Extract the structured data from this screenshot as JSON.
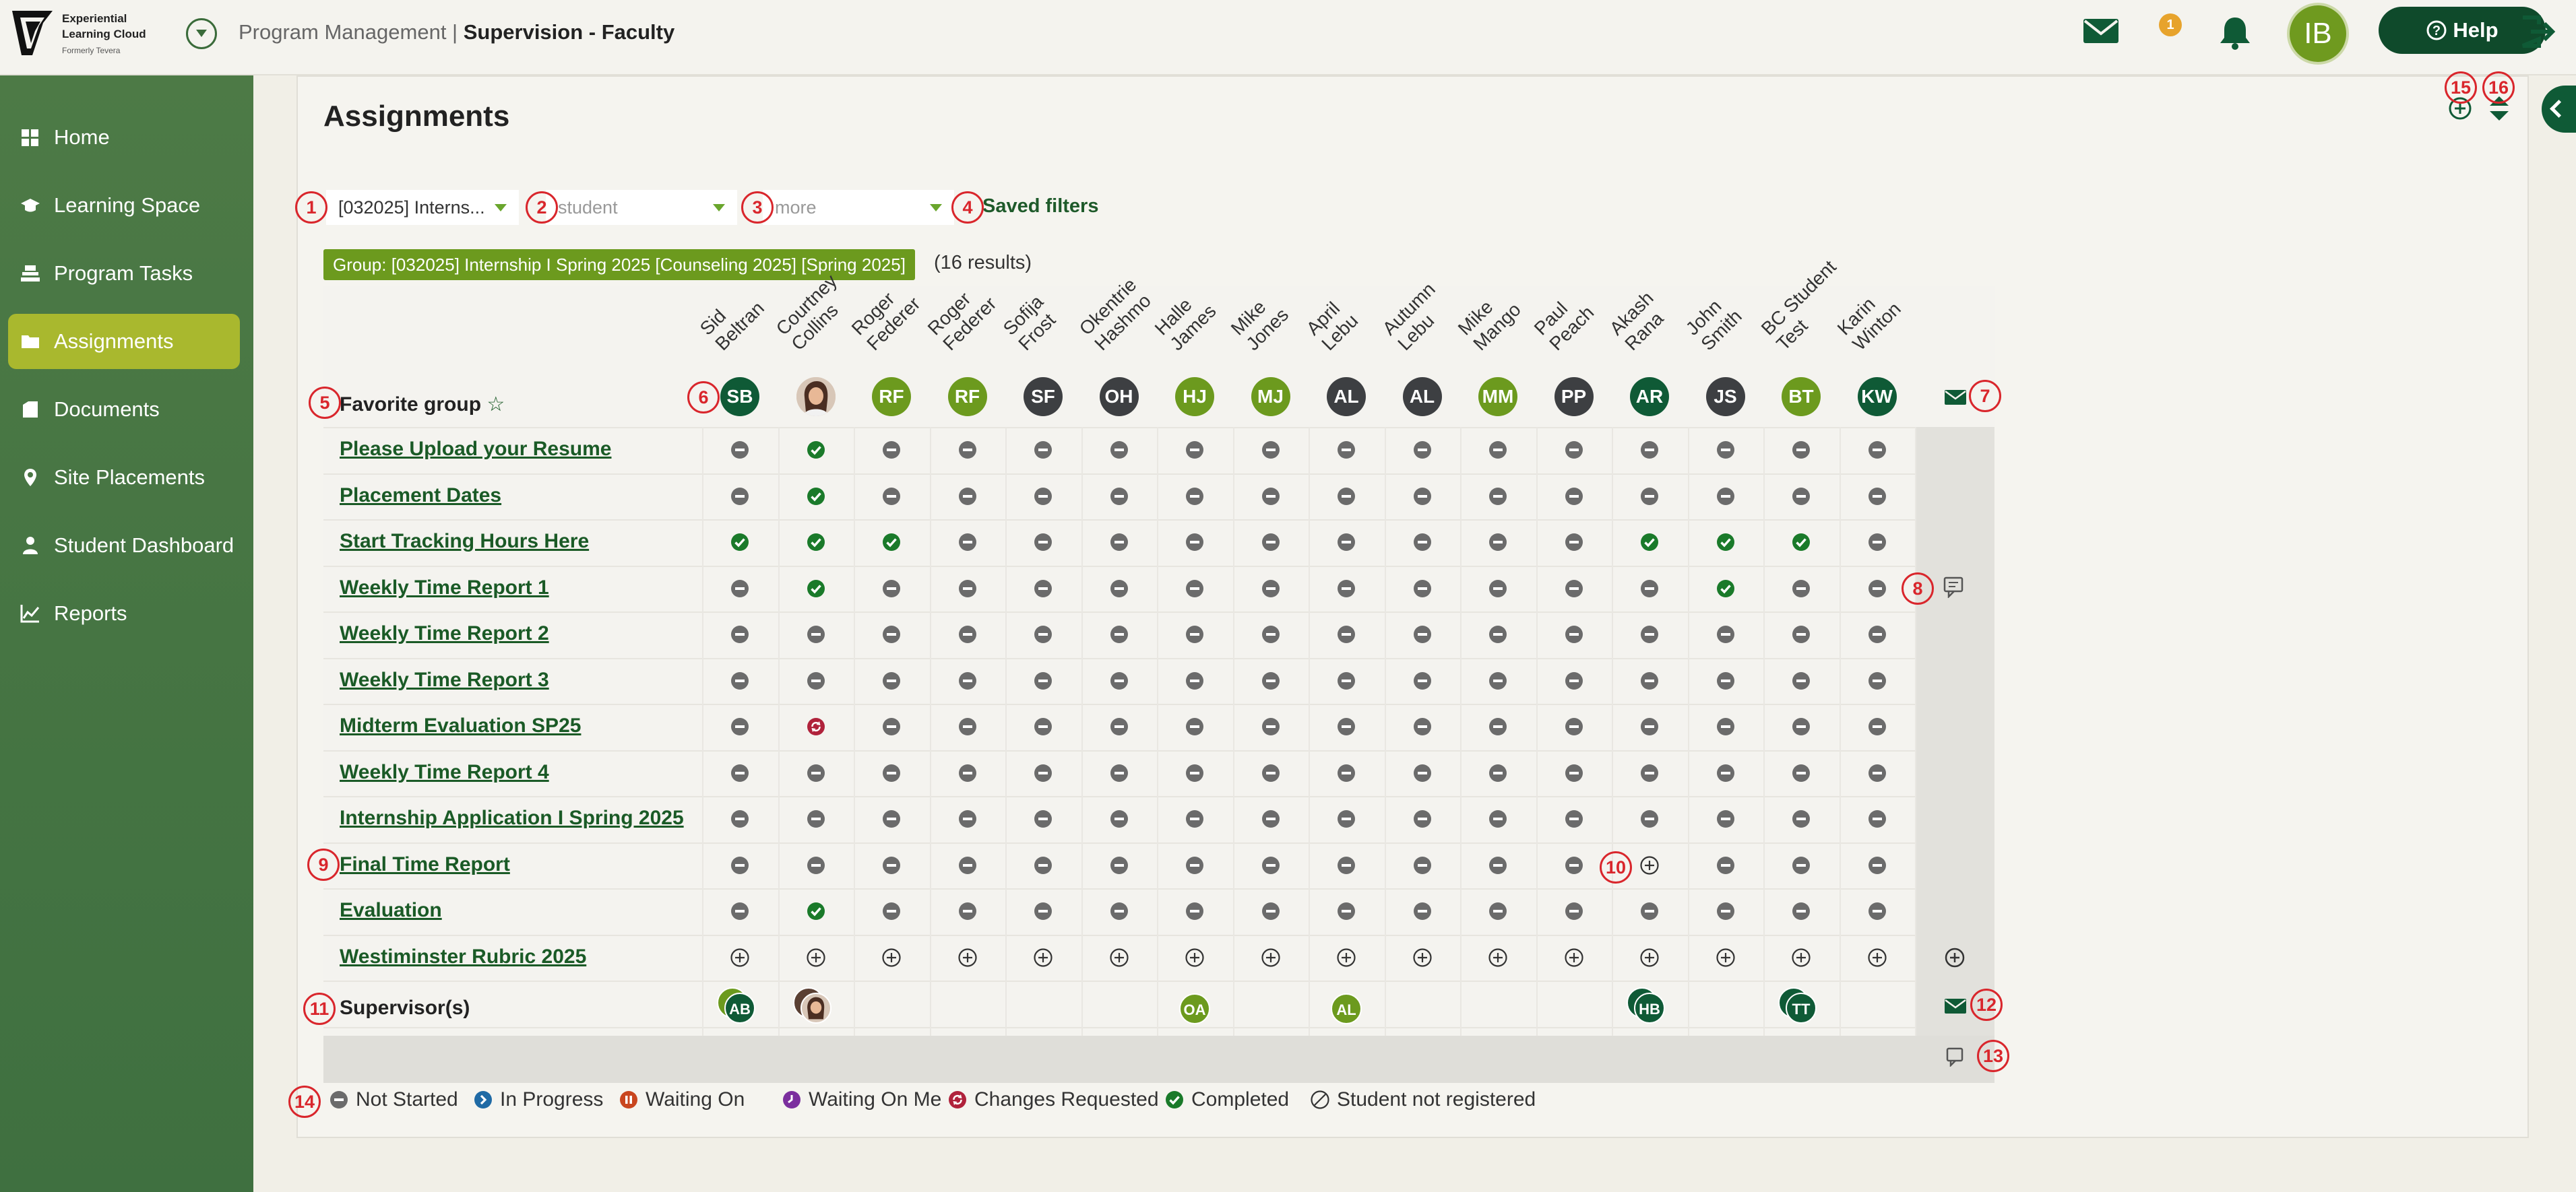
{
  "header": {
    "logo_lines": [
      "Experiential",
      "Learning Cloud"
    ],
    "logo_sub": "Formerly Tevera",
    "breadcrumb_section": "Program Management",
    "breadcrumb_sep": " | ",
    "breadcrumb_page": "Supervision - Faculty",
    "mail_count": "1",
    "user_initials": "IB",
    "help_label": "Help",
    "icons": [
      "menu-chevron-icon",
      "mail-icon",
      "bell-icon",
      "help-circle-icon",
      "logout-icon"
    ]
  },
  "sidebar": {
    "items": [
      {
        "label": "Home",
        "icon": "home-grid-icon",
        "active": false
      },
      {
        "label": "Learning Space",
        "icon": "learning-cap-icon",
        "active": false
      },
      {
        "label": "Program Tasks",
        "icon": "tasks-icon",
        "active": false
      },
      {
        "label": "Assignments",
        "icon": "folder-icon",
        "active": true
      },
      {
        "label": "Documents",
        "icon": "document-icon",
        "active": false
      },
      {
        "label": "Site Placements",
        "icon": "location-pin-icon",
        "active": false
      },
      {
        "label": "Student Dashboard",
        "icon": "person-icon",
        "active": false
      },
      {
        "label": "Reports",
        "icon": "chart-icon",
        "active": false
      }
    ]
  },
  "main": {
    "title": "Assignments",
    "filters": {
      "group": "[032025] Interns...",
      "student_placeholder": "student",
      "more_placeholder": "more",
      "saved_filters": "Saved filters"
    },
    "group_badge": "Group: [032025] Internship I Spring 2025 [Counseling 2025] [Spring 2025]",
    "results": "(16 results)",
    "favorite_label": "Favorite group",
    "supervisors_label": "Supervisor(s)"
  },
  "students": [
    {
      "name": "Sid\nBeltran",
      "initials": "SB",
      "color": "#0f5a36"
    },
    {
      "name": "Courtney\nCollins",
      "initials": "",
      "color": "photo"
    },
    {
      "name": "Roger\nFederer",
      "initials": "RF",
      "color": "#6c9a1e"
    },
    {
      "name": "Roger\nFederer",
      "initials": "RF",
      "color": "#6c9a1e"
    },
    {
      "name": "Sofija\nFrost",
      "initials": "SF",
      "color": "#3d3f42"
    },
    {
      "name": "Okentrie\nHashmo",
      "initials": "OH",
      "color": "#3d3f42"
    },
    {
      "name": "Halle\nJames",
      "initials": "HJ",
      "color": "#6c9a1e"
    },
    {
      "name": "Mike\nJones",
      "initials": "MJ",
      "color": "#6c9a1e"
    },
    {
      "name": "April\nLebu",
      "initials": "AL",
      "color": "#3d3f42"
    },
    {
      "name": "Autumn\nLebu",
      "initials": "AL",
      "color": "#3d3f42"
    },
    {
      "name": "Mike\nMango",
      "initials": "MM",
      "color": "#6c9a1e"
    },
    {
      "name": "Paul\nPeach",
      "initials": "PP",
      "color": "#3d3f42"
    },
    {
      "name": "Akash\nRana",
      "initials": "AR",
      "color": "#0f5a36"
    },
    {
      "name": "John\nSmith",
      "initials": "JS",
      "color": "#3d3f42"
    },
    {
      "name": "BC Student\nTest",
      "initials": "BT",
      "color": "#6c9a1e"
    },
    {
      "name": "Karin\nWinton",
      "initials": "KW",
      "color": "#0f5a36"
    }
  ],
  "tasks": [
    {
      "name": "Please Upload your Resume",
      "status": "NCNNNNNNNNNNNNNN"
    },
    {
      "name": "Placement Dates",
      "status": "NCNNNNNNNNNNNNNN"
    },
    {
      "name": "Start Tracking Hours Here",
      "status": "CCCNNNNNNNNNCCCN"
    },
    {
      "name": "Weekly Time Report 1",
      "status": "NCNNNNNNNNNNNCNN"
    },
    {
      "name": "Weekly Time Report 2",
      "status": "NNNNNNNNNNNNNNNN"
    },
    {
      "name": "Weekly Time Report 3",
      "status": "NNNNNNNNNNNNNNNN"
    },
    {
      "name": "Midterm Evaluation SP25",
      "status": "NRNNNNNNNNNNNNNN"
    },
    {
      "name": "Weekly Time Report 4",
      "status": "NNNNNNNNNNNNNNNN"
    },
    {
      "name": "Internship Application I Spring 2025",
      "status": "NNNNNNNNNNNNNNNN"
    },
    {
      "name": "Final Time Report",
      "status": "NNNNNNNNNNNNANNN"
    },
    {
      "name": "Evaluation",
      "status": "NCNNNNNNNNNNNNNN"
    },
    {
      "name": "Westiminster Rubric 2025",
      "status": "AAAAAAAAAAAAAAAA"
    }
  ],
  "supervisors": [
    {
      "col": 0,
      "initials": "AB",
      "color": "#0f5a36",
      "stack": true
    },
    {
      "col": 1,
      "initials": "",
      "color": "photo",
      "stack": true
    },
    {
      "col": 6,
      "initials": "OA",
      "color": "#6c9a1e",
      "stack": false
    },
    {
      "col": 8,
      "initials": "AL",
      "color": "#6c9a1e",
      "stack": false
    },
    {
      "col": 12,
      "initials": "HB",
      "color": "#0f5a36",
      "stack": true
    },
    {
      "col": 14,
      "initials": "TT",
      "color": "#0f5a36",
      "stack": true
    }
  ],
  "legend": [
    {
      "label": "Not Started",
      "icon": "not-started-icon",
      "color": "#6b6b6b"
    },
    {
      "label": "In Progress",
      "icon": "in-progress-icon",
      "color": "#1f6aa5"
    },
    {
      "label": "Waiting On",
      "icon": "waiting-on-icon",
      "color": "#c9461f"
    },
    {
      "label": "Waiting On Me",
      "icon": "waiting-on-me-icon",
      "color": "#7b2f9e"
    },
    {
      "label": "Changes Requested",
      "icon": "changes-requested-icon",
      "color": "#b0223b"
    },
    {
      "label": "Completed",
      "icon": "completed-icon",
      "color": "#1a7a2a"
    },
    {
      "label": "Student not registered",
      "icon": "not-registered-icon",
      "color": "#333333"
    }
  ],
  "callouts": [
    "1",
    "2",
    "3",
    "4",
    "5",
    "6",
    "7",
    "8",
    "9",
    "10",
    "11",
    "12",
    "13",
    "14",
    "15",
    "16"
  ]
}
